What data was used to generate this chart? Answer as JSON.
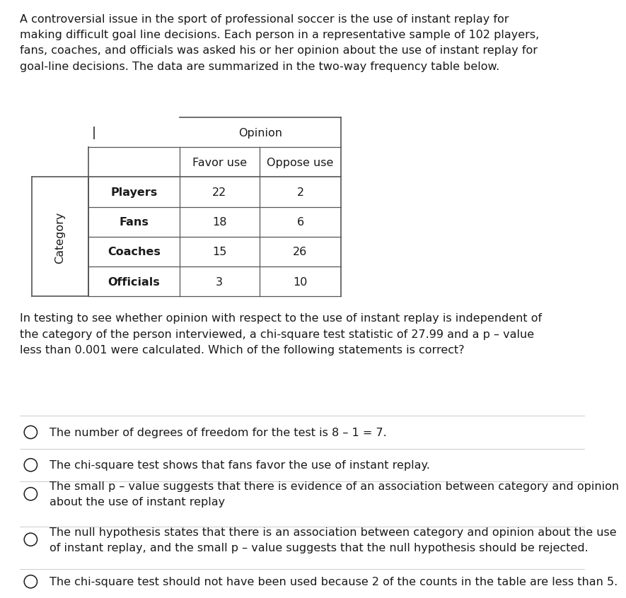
{
  "intro_text": "A controversial issue in the sport of professional soccer is the use of instant replay for\nmaking difficult goal line decisions. Each person in a representative sample of 102 players,\nfans, coaches, and officials was asked his or her opinion about the use of instant replay for\ngoal-line decisions. The data are summarized in the two-way frequency table below.",
  "table": {
    "col_header": [
      "Favor use",
      "Oppose use"
    ],
    "col_group": "Opinion",
    "row_header": [
      "Players",
      "Fans",
      "Coaches",
      "Officials"
    ],
    "row_group": "Category",
    "data": [
      [
        22,
        2
      ],
      [
        18,
        6
      ],
      [
        15,
        26
      ],
      [
        3,
        10
      ]
    ]
  },
  "middle_text": "In testing to see whether opinion with respect to the use of instant replay is independent of\nthe category of the person interviewed, a chi-square test statistic of 27.99 and a p – value\nless than 0.001 were calculated. Which of the following statements is correct?",
  "options": [
    "The number of degrees of freedom for the test is 8 – 1 = 7.",
    "The chi-square test shows that fans favor the use of instant replay.",
    "The small p – value suggests that there is evidence of an association between category and opinion\nabout the use of instant replay",
    "The null hypothesis states that there is an association between category and opinion about the use\nof instant replay, and the small p – value suggests that the null hypothesis should be rejected.",
    "The chi-square test should not have been used because 2 of the counts in the table are less than 5."
  ],
  "bg_color": "#ffffff",
  "text_color": "#1a1a1a",
  "line_color": "#555555",
  "gray_line": "#cccccc",
  "font_size": 11.5,
  "table_font_size": 11.5
}
